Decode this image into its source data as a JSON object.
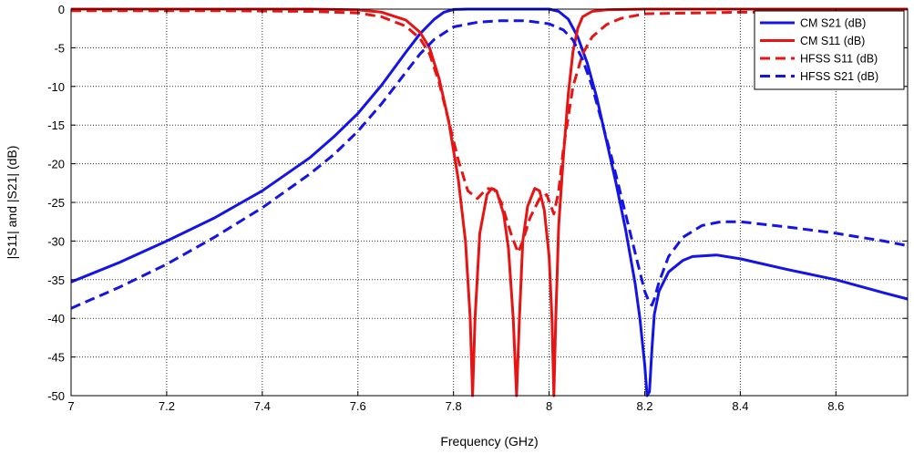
{
  "chart_data": {
    "type": "line",
    "title": "",
    "xlabel": "Frequency (GHz)",
    "ylabel": "|S11| and |S21| (dB)",
    "xlim": [
      7,
      8.75
    ],
    "ylim": [
      -50,
      0
    ],
    "grid": true,
    "legend_position": "top-right",
    "xticks": [
      7,
      7.2,
      7.4,
      7.6,
      7.8,
      8,
      8.2,
      8.4,
      8.6
    ],
    "xtick_labels": [
      "7",
      "7.2",
      "7.4",
      "7.6",
      "7.8",
      "8",
      "8.2",
      "8.4",
      "8.6"
    ],
    "yticks": [
      0,
      -5,
      -10,
      -15,
      -20,
      -25,
      -30,
      -35,
      -40,
      -45,
      -50
    ],
    "ytick_labels": [
      "0",
      "-5",
      "-10",
      "-15",
      "-20",
      "-25",
      "-30",
      "-35",
      "-40",
      "-45",
      "-50"
    ],
    "series": [
      {
        "name": "CM S21 (dB)",
        "color": "#1414e6",
        "dash": "solid",
        "x": [
          7.0,
          7.1,
          7.2,
          7.3,
          7.4,
          7.5,
          7.55,
          7.6,
          7.65,
          7.7,
          7.73,
          7.76,
          7.78,
          7.8,
          7.83,
          8.0,
          8.02,
          8.04,
          8.06,
          8.08,
          8.1,
          8.12,
          8.14,
          8.16,
          8.18,
          8.19,
          8.2,
          8.205,
          8.21,
          8.215,
          8.22,
          8.23,
          8.25,
          8.28,
          8.3,
          8.35,
          8.4,
          8.5,
          8.6,
          8.7,
          8.75
        ],
        "y": [
          -35.3,
          -32.8,
          -30.0,
          -27.0,
          -23.5,
          -19.2,
          -16.5,
          -13.5,
          -9.8,
          -5.6,
          -3.2,
          -1.3,
          -0.4,
          -0.05,
          0.0,
          0.0,
          -0.3,
          -1.3,
          -3.6,
          -7.0,
          -11.5,
          -17.0,
          -22.5,
          -28.5,
          -35.5,
          -40.0,
          -46.0,
          -50.0,
          -49.5,
          -44.0,
          -39.5,
          -36.5,
          -34.0,
          -32.5,
          -32.0,
          -31.8,
          -32.3,
          -33.7,
          -35.0,
          -36.7,
          -37.5
        ]
      },
      {
        "name": "CM S11 (dB)",
        "color": "#e61414",
        "dash": "solid",
        "x": [
          7.0,
          7.3,
          7.5,
          7.6,
          7.65,
          7.7,
          7.73,
          7.75,
          7.77,
          7.79,
          7.81,
          7.825,
          7.835,
          7.84,
          7.845,
          7.855,
          7.87,
          7.88,
          7.89,
          7.905,
          7.915,
          7.925,
          7.932,
          7.938,
          7.945,
          7.955,
          7.97,
          7.98,
          7.99,
          8.0,
          8.006,
          8.01,
          8.014,
          8.02,
          8.03,
          8.04,
          8.05,
          8.06,
          8.07,
          8.09,
          8.12,
          8.2,
          8.4,
          8.75
        ],
        "y": [
          0.0,
          0.0,
          0.0,
          -0.1,
          -0.4,
          -1.4,
          -3.0,
          -5.0,
          -9.0,
          -14.5,
          -22.0,
          -30.0,
          -40.0,
          -50.0,
          -40.0,
          -29.0,
          -24.0,
          -23.2,
          -23.5,
          -26.5,
          -31.0,
          -40.0,
          -50.0,
          -40.0,
          -30.0,
          -25.5,
          -23.2,
          -23.5,
          -26.0,
          -32.0,
          -40.0,
          -50.0,
          -40.0,
          -28.0,
          -19.0,
          -11.0,
          -5.5,
          -2.5,
          -1.0,
          -0.3,
          -0.1,
          0.0,
          0.0,
          0.0
        ]
      },
      {
        "name": "HFSS S11 (dB)",
        "color": "#e61414",
        "dash": "dashed",
        "x": [
          7.0,
          7.3,
          7.5,
          7.6,
          7.65,
          7.7,
          7.73,
          7.75,
          7.77,
          7.79,
          7.81,
          7.83,
          7.85,
          7.87,
          7.885,
          7.9,
          7.92,
          7.935,
          7.945,
          7.96,
          7.98,
          7.995,
          8.01,
          8.02,
          8.03,
          8.05,
          8.07,
          8.09,
          8.12,
          8.15,
          8.2,
          8.4,
          8.75
        ],
        "y": [
          -0.2,
          -0.2,
          -0.3,
          -0.5,
          -1.0,
          -2.2,
          -3.8,
          -5.8,
          -9.5,
          -14.5,
          -19.5,
          -23.5,
          -24.5,
          -23.2,
          -23.3,
          -25.0,
          -29.0,
          -31.5,
          -30.0,
          -27.0,
          -24.5,
          -24.0,
          -26.5,
          -23.5,
          -18.0,
          -10.0,
          -5.8,
          -3.6,
          -2.0,
          -1.2,
          -0.6,
          -0.4,
          -0.3
        ]
      },
      {
        "name": "HFSS S21 (dB)",
        "color": "#1414e6",
        "dash": "dashed",
        "x": [
          7.0,
          7.1,
          7.2,
          7.3,
          7.4,
          7.5,
          7.55,
          7.6,
          7.65,
          7.7,
          7.73,
          7.76,
          7.8,
          7.85,
          7.9,
          7.95,
          8.0,
          8.03,
          8.05,
          8.07,
          8.09,
          8.11,
          8.13,
          8.15,
          8.17,
          8.19,
          8.2,
          8.21,
          8.215,
          8.22,
          8.23,
          8.25,
          8.28,
          8.32,
          8.36,
          8.4,
          8.5,
          8.6,
          8.7,
          8.75
        ],
        "y": [
          -38.7,
          -36.0,
          -33.0,
          -29.5,
          -25.7,
          -21.3,
          -18.8,
          -15.8,
          -12.2,
          -8.2,
          -5.8,
          -3.9,
          -2.3,
          -1.7,
          -1.5,
          -1.5,
          -1.9,
          -2.7,
          -4.0,
          -6.5,
          -10.0,
          -14.5,
          -19.0,
          -24.0,
          -29.0,
          -34.0,
          -36.5,
          -38.0,
          -38.3,
          -37.5,
          -35.3,
          -32.0,
          -29.5,
          -28.0,
          -27.5,
          -27.5,
          -28.2,
          -29.0,
          -30.0,
          -30.6
        ]
      }
    ]
  }
}
